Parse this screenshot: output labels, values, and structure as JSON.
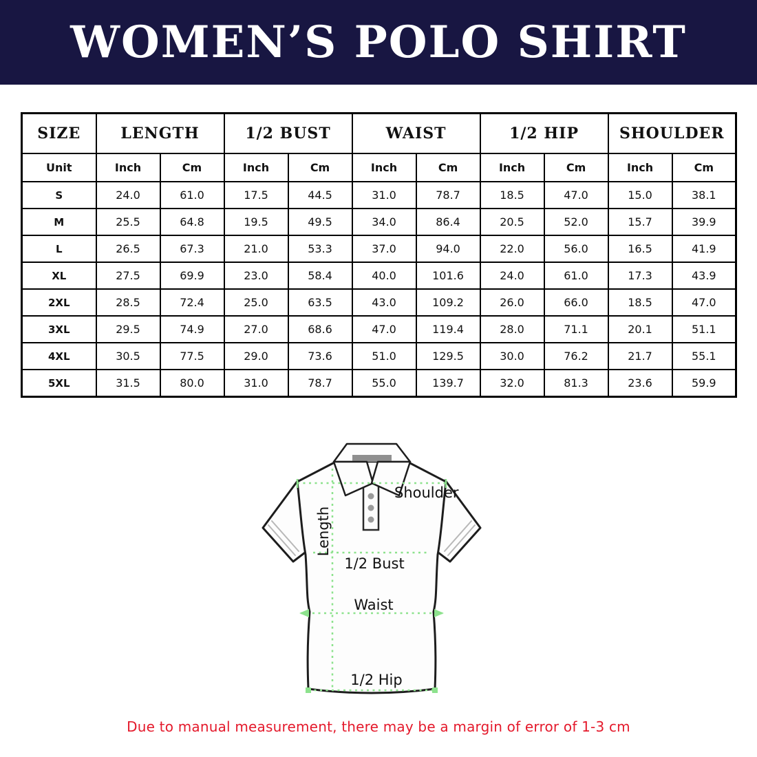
{
  "page": {
    "title": "WOMEN’S POLO SHIRT",
    "disclaimer": "Due to manual measurement, there may be a margin of error of 1-3 cm",
    "colors": {
      "banner_navy": "#181642",
      "title_text": "#ffffff",
      "table_border": "#000000",
      "measure_line_green": "#8de28d",
      "disclaimer_red": "#e4192b"
    }
  },
  "size_table": {
    "corner_header": "SIZE",
    "group_headers": [
      "LENGTH",
      "1/2 BUST",
      "WAIST",
      "1/2 HIP",
      "SHOULDER"
    ],
    "unit_row_label": "Unit",
    "unit_headers": [
      "Inch",
      "Cm",
      "Inch",
      "Cm",
      "Inch",
      "Cm",
      "Inch",
      "Cm",
      "Inch",
      "Cm"
    ],
    "rows": [
      {
        "size": "S",
        "values": [
          "24.0",
          "61.0",
          "17.5",
          "44.5",
          "31.0",
          "78.7",
          "18.5",
          "47.0",
          "15.0",
          "38.1"
        ]
      },
      {
        "size": "M",
        "values": [
          "25.5",
          "64.8",
          "19.5",
          "49.5",
          "34.0",
          "86.4",
          "20.5",
          "52.0",
          "15.7",
          "39.9"
        ]
      },
      {
        "size": "L",
        "values": [
          "26.5",
          "67.3",
          "21.0",
          "53.3",
          "37.0",
          "94.0",
          "22.0",
          "56.0",
          "16.5",
          "41.9"
        ]
      },
      {
        "size": "XL",
        "values": [
          "27.5",
          "69.9",
          "23.0",
          "58.4",
          "40.0",
          "101.6",
          "24.0",
          "61.0",
          "17.3",
          "43.9"
        ]
      },
      {
        "size": "2XL",
        "values": [
          "28.5",
          "72.4",
          "25.0",
          "63.5",
          "43.0",
          "109.2",
          "26.0",
          "66.0",
          "18.5",
          "47.0"
        ]
      },
      {
        "size": "3XL",
        "values": [
          "29.5",
          "74.9",
          "27.0",
          "68.6",
          "47.0",
          "119.4",
          "28.0",
          "71.1",
          "20.1",
          "51.1"
        ]
      },
      {
        "size": "4XL",
        "values": [
          "30.5",
          "77.5",
          "29.0",
          "73.6",
          "51.0",
          "129.5",
          "30.0",
          "76.2",
          "21.7",
          "55.1"
        ]
      },
      {
        "size": "5XL",
        "values": [
          "31.5",
          "80.0",
          "31.0",
          "78.7",
          "55.0",
          "139.7",
          "32.0",
          "81.3",
          "23.6",
          "59.9"
        ]
      }
    ]
  },
  "diagram": {
    "labels": {
      "shoulder": "Shoulder",
      "length": "Length",
      "half_bust": "1/2 Bust",
      "waist": "Waist",
      "half_hip": "1/2 Hip"
    }
  }
}
